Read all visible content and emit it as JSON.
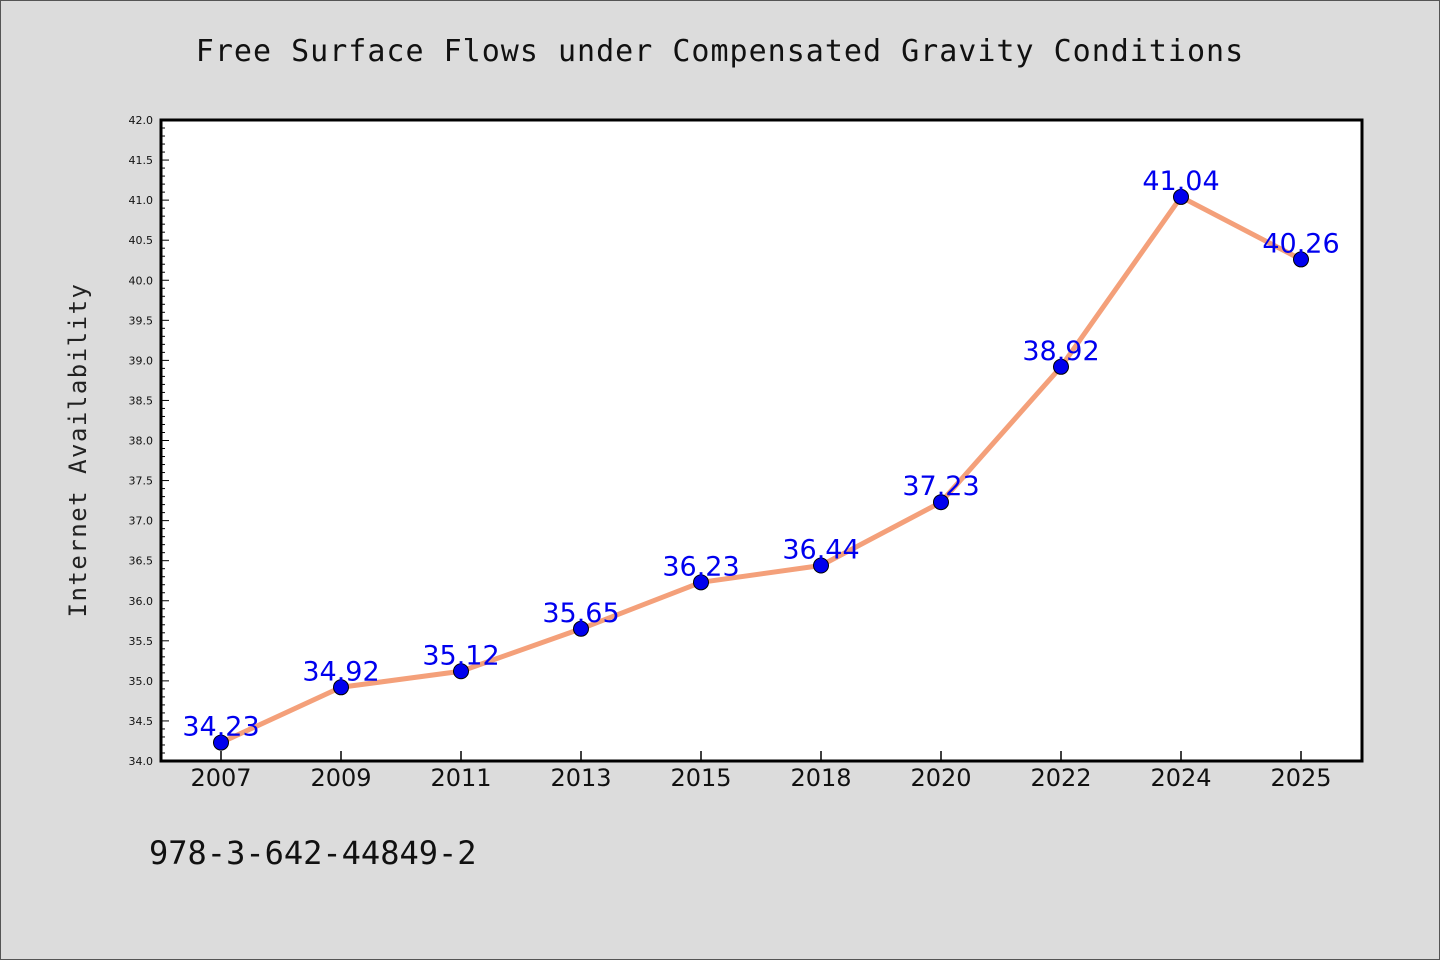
{
  "chart_data": {
    "type": "line",
    "title": "Free Surface Flows under Compensated Gravity Conditions",
    "xlabel": "",
    "ylabel": "Internet Availability",
    "categories": [
      "2007",
      "2009",
      "2011",
      "2013",
      "2015",
      "2018",
      "2020",
      "2022",
      "2024",
      "2025"
    ],
    "series": [
      {
        "values": [
          34.23,
          34.92,
          35.12,
          35.65,
          36.23,
          36.44,
          37.23,
          38.92,
          41.04,
          40.26
        ],
        "labels": [
          "34.23",
          "34.92",
          "35.12",
          "35.65",
          "36.23",
          "36.44",
          "37.23",
          "38.92",
          "41.04",
          "40.26"
        ]
      }
    ],
    "ylim": [
      34.0,
      42.0
    ],
    "yticks": [
      "34.0",
      "34.5",
      "35.0",
      "35.5",
      "36.0",
      "36.5",
      "37.0",
      "37.5",
      "38.0",
      "38.5",
      "39.0",
      "39.5",
      "40.0",
      "40.5",
      "41.0",
      "41.5",
      "42.0"
    ],
    "grid": false,
    "legend": "none",
    "colors": {
      "line": "#f4a07a",
      "marker": "#0000ee",
      "label": "#0000ee"
    }
  },
  "footnote": "978-3-642-44849-2"
}
